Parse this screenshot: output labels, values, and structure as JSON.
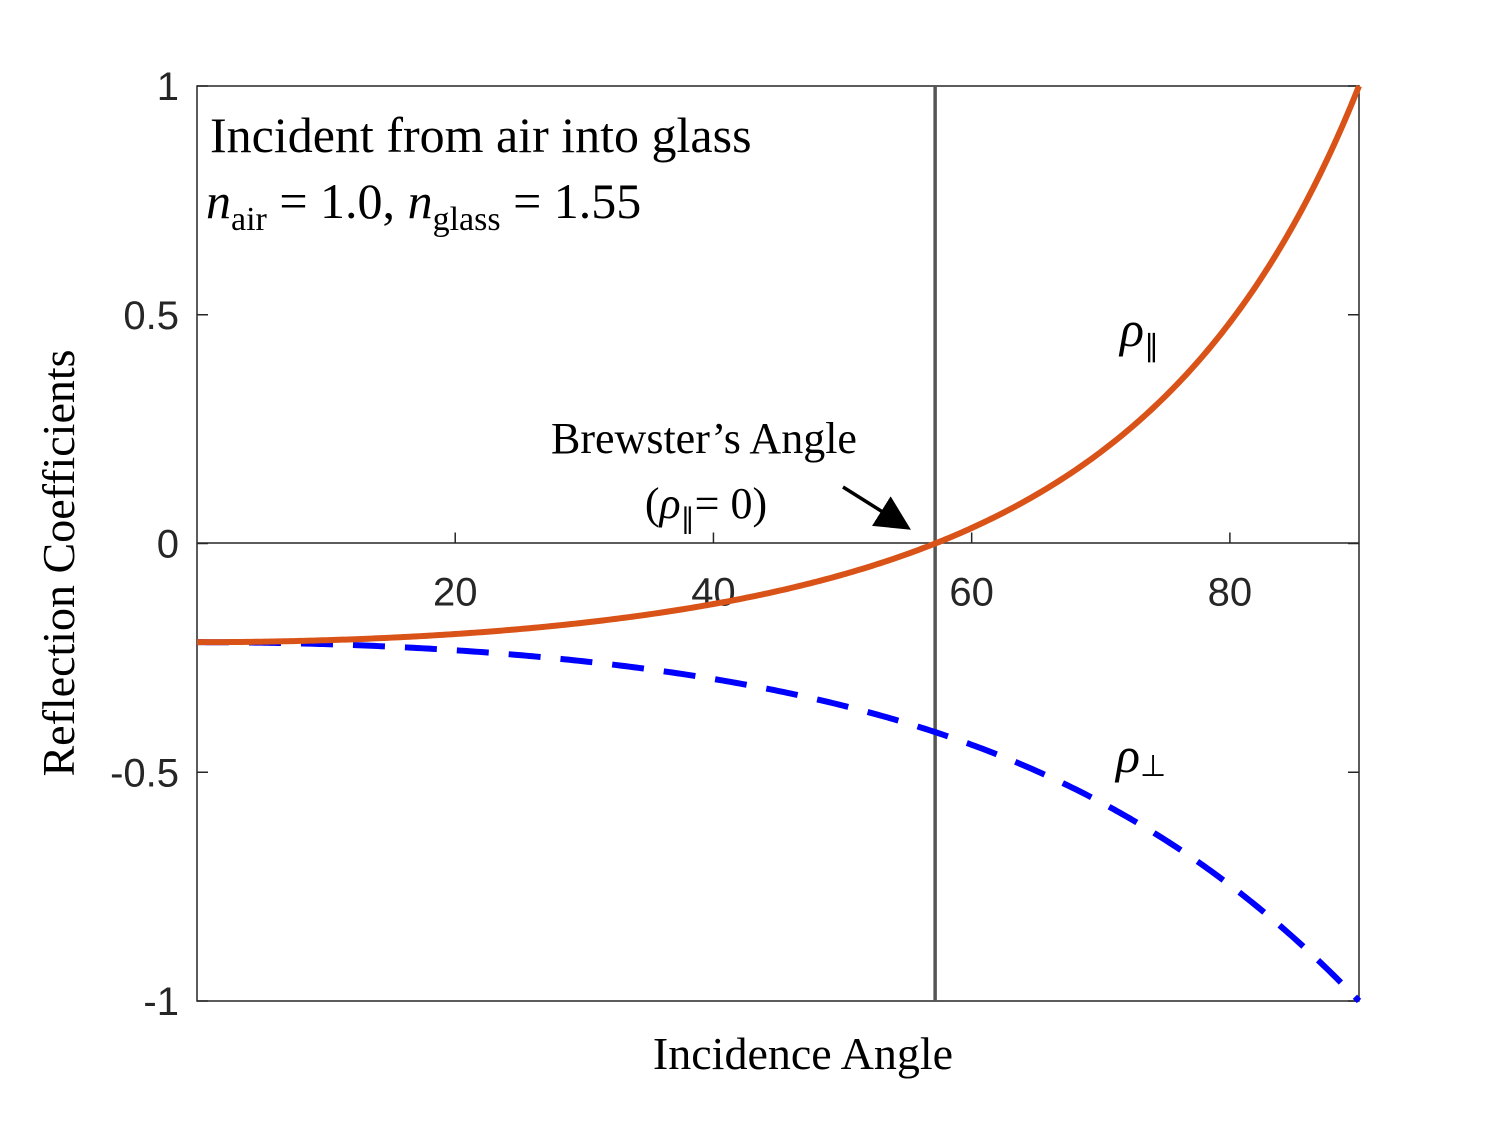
{
  "chart_data": {
    "type": "line",
    "xlabel": "Incidence Angle",
    "ylabel": "Reflection Coefficients",
    "xlim": [
      0,
      90
    ],
    "ylim": [
      -1,
      1
    ],
    "xticks": [
      20,
      40,
      60,
      80
    ],
    "yticks": [
      -1,
      -0.5,
      0,
      0.5,
      1
    ],
    "xtick_labels": [
      "20",
      "40",
      "60",
      "80"
    ],
    "ytick_labels": [
      "-1",
      "-0.5",
      "0",
      "0.5",
      "1"
    ],
    "grid": false,
    "zero_line": true,
    "n1": 1.0,
    "n2": 1.55,
    "brewster_angle_deg": 57.17,
    "x": [
      0,
      5,
      10,
      15,
      20,
      25,
      30,
      35,
      40,
      45,
      50,
      55,
      57.17,
      60,
      65,
      70,
      75,
      80,
      85,
      90
    ],
    "series": [
      {
        "label_symbol": "ρ",
        "label_subscript": "∥",
        "style": "solid",
        "color": "#d95319",
        "values": [
          -0.2157,
          -0.2145,
          -0.211,
          -0.2047,
          -0.1955,
          -0.1828,
          -0.1658,
          -0.1434,
          -0.114,
          -0.0753,
          -0.024,
          0.0447,
          0.0,
          0.1389,
          0.2307,
          0.348,
          0.4957,
          0.678,
          0.8975,
          1.0
        ]
      },
      {
        "label_symbol": "ρ",
        "label_subscript": "⊥",
        "style": "dashed",
        "color": "#0000ff",
        "values": [
          -0.2157,
          -0.2169,
          -0.2205,
          -0.2266,
          -0.2354,
          -0.2473,
          -0.2626,
          -0.2818,
          -0.3056,
          -0.3349,
          -0.371,
          -0.4153,
          -0.4377,
          -0.4704,
          -0.5393,
          -0.6257,
          -0.7345,
          -0.8374,
          -0.9166,
          -1.0
        ]
      }
    ]
  },
  "annotations": {
    "title_line1": "Incident from air into glass",
    "eq_n": "n",
    "eq_air_sub": "air",
    "eq_mid": " = 1.0, ",
    "eq_glass_sub": "glass",
    "eq_end": " = 1.55",
    "brewster_line1": "Brewster’s Angle",
    "brewster_open": "(",
    "brewster_symbol": "ρ",
    "brewster_sub": "∥",
    "brewster_close": "= 0)"
  },
  "colors": {
    "parallel": "#d95319",
    "perpendicular": "#0000ff",
    "brewster_line": "#555555",
    "axes": "#262626"
  }
}
